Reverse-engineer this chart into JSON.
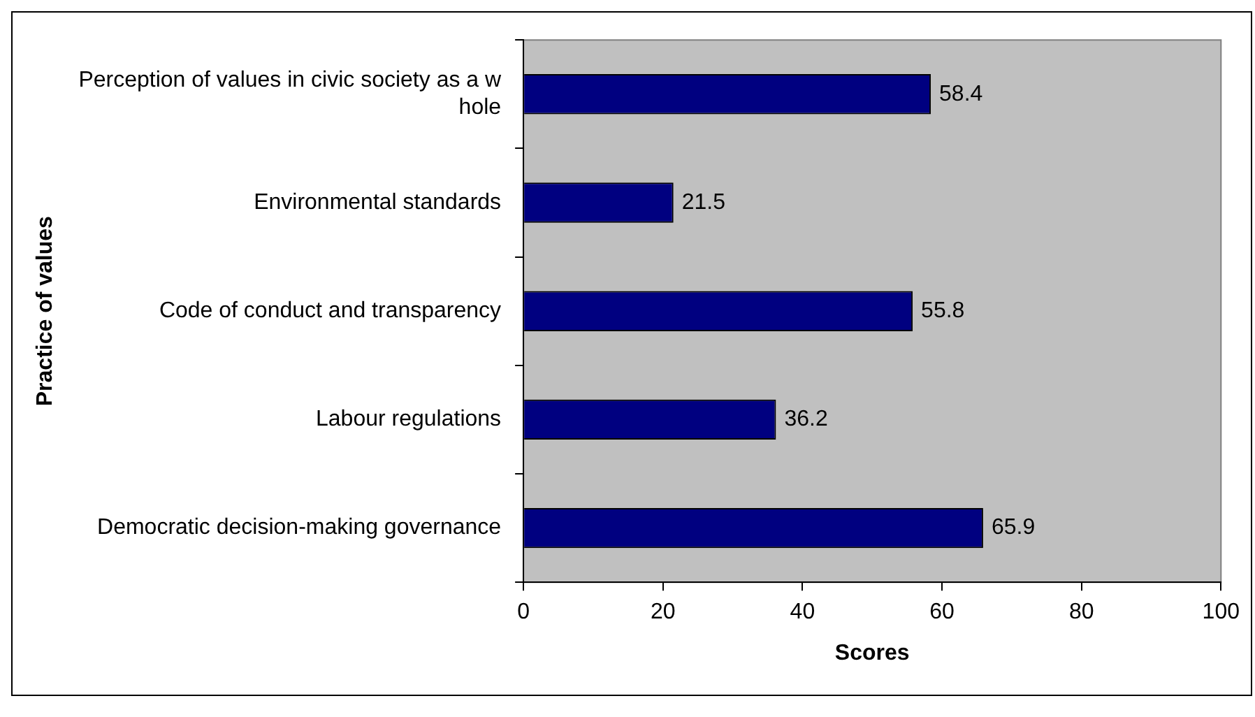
{
  "chart_data": {
    "type": "bar",
    "orientation": "horizontal",
    "xlabel": "Scores",
    "ylabel": "Practice of values",
    "categories": [
      "Perception of values in civic society as a w hole",
      "Environmental standards",
      "Code of conduct and transparency",
      "Labour regulations",
      "Democratic decision-making governance"
    ],
    "values": [
      58.4,
      21.5,
      55.8,
      36.2,
      65.9
    ],
    "color": "#000080",
    "data_labels": true,
    "xlim": [
      0,
      100
    ],
    "xticks": [
      0,
      20,
      40,
      60,
      80,
      100
    ]
  }
}
